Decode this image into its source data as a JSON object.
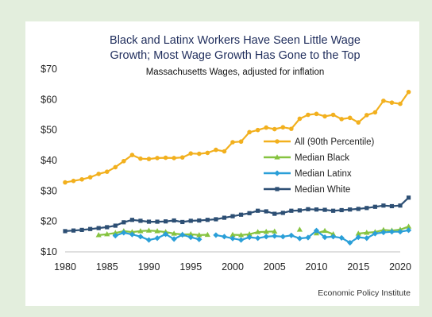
{
  "chart_data": {
    "type": "line",
    "title_line1": "Black and Latinx Workers Have Seen Little Wage",
    "title_line2": "Growth; Most Wage Growth Has Gone to the Top",
    "subtitle": "Massachusetts Wages, adjusted for inflation",
    "source": "Economic Policy Institute",
    "xlim": [
      1980,
      2020
    ],
    "ylim": [
      10,
      70
    ],
    "x_ticks": [
      "1980",
      "1985",
      "1990",
      "1995",
      "2000",
      "2005",
      "2010",
      "2015",
      "2020"
    ],
    "y_ticks": [
      "$10",
      "$20",
      "$30",
      "$40",
      "$50",
      "$60",
      "$70"
    ],
    "legend_position": "right",
    "grid": false,
    "series": [
      {
        "name": "All (90th Percentile)",
        "color": "#f2b01e",
        "marker": "circle",
        "points": [
          [
            1980,
            32.8
          ],
          [
            1981,
            33.3
          ],
          [
            1982,
            33.8
          ],
          [
            1983,
            34.5
          ],
          [
            1984,
            35.6
          ],
          [
            1985,
            36.3
          ],
          [
            1986,
            37.8
          ],
          [
            1987,
            39.8
          ],
          [
            1988,
            41.8
          ],
          [
            1989,
            40.6
          ],
          [
            1990,
            40.5
          ],
          [
            1991,
            40.8
          ],
          [
            1992,
            40.9
          ],
          [
            1993,
            40.8
          ],
          [
            1994,
            41.0
          ],
          [
            1995,
            42.3
          ],
          [
            1996,
            42.2
          ],
          [
            1997,
            42.5
          ],
          [
            1998,
            43.5
          ],
          [
            1999,
            43.0
          ],
          [
            2000,
            46.0
          ],
          [
            2001,
            46.2
          ],
          [
            2002,
            49.3
          ],
          [
            2003,
            50.0
          ],
          [
            2004,
            50.8
          ],
          [
            2005,
            50.3
          ],
          [
            2006,
            50.9
          ],
          [
            2007,
            50.4
          ],
          [
            2008,
            53.7
          ],
          [
            2009,
            55.0
          ],
          [
            2010,
            55.3
          ],
          [
            2011,
            54.5
          ],
          [
            2012,
            55.0
          ],
          [
            2013,
            53.6
          ],
          [
            2014,
            54.0
          ],
          [
            2015,
            52.5
          ],
          [
            2016,
            54.9
          ],
          [
            2017,
            55.8
          ],
          [
            2018,
            59.6
          ],
          [
            2019,
            59.0
          ],
          [
            2020,
            58.6
          ],
          [
            2021,
            62.5
          ]
        ]
      },
      {
        "name": "Median Black",
        "color": "#86c340",
        "marker": "triangle",
        "points": [
          [
            1984,
            15.5
          ],
          [
            1985,
            15.8
          ],
          [
            1986,
            16.2
          ],
          [
            1987,
            16.8
          ],
          [
            1988,
            16.5
          ],
          [
            1989,
            16.8
          ],
          [
            1990,
            17.0
          ],
          [
            1991,
            16.8
          ],
          [
            1992,
            16.5
          ],
          [
            1993,
            16.0
          ],
          [
            1994,
            15.7
          ],
          [
            1995,
            15.8
          ],
          [
            1996,
            15.5
          ],
          [
            1997,
            15.6
          ],
          [
            null,
            null
          ],
          [
            2000,
            15.6
          ],
          [
            2001,
            15.5
          ],
          [
            2002,
            15.8
          ],
          [
            2003,
            16.5
          ],
          [
            2004,
            16.6
          ],
          [
            2005,
            16.7
          ],
          [
            null,
            null
          ],
          [
            2008,
            17.3
          ],
          [
            null,
            null
          ],
          [
            2010,
            16.1
          ],
          [
            2011,
            16.9
          ],
          [
            2012,
            15.8
          ],
          [
            null,
            null
          ],
          [
            2015,
            16.0
          ],
          [
            2016,
            16.3
          ],
          [
            2017,
            16.5
          ],
          [
            2018,
            17.2
          ],
          [
            2019,
            17.0
          ],
          [
            2020,
            17.3
          ],
          [
            2021,
            18.3
          ]
        ]
      },
      {
        "name": "Median Latinx",
        "color": "#2a9fd8",
        "marker": "diamond",
        "points": [
          [
            1986,
            15.3
          ],
          [
            1987,
            16.3
          ],
          [
            1988,
            15.7
          ],
          [
            1989,
            15.0
          ],
          [
            1990,
            13.9
          ],
          [
            1991,
            14.5
          ],
          [
            1992,
            15.8
          ],
          [
            1993,
            14.2
          ],
          [
            1994,
            15.6
          ],
          [
            1995,
            14.8
          ],
          [
            1996,
            14.1
          ],
          [
            null,
            null
          ],
          [
            1998,
            15.5
          ],
          [
            1999,
            15.0
          ],
          [
            2000,
            14.4
          ],
          [
            2001,
            13.9
          ],
          [
            2002,
            14.8
          ],
          [
            2003,
            14.5
          ],
          [
            2004,
            15.0
          ],
          [
            2005,
            15.2
          ],
          [
            2006,
            15.0
          ],
          [
            2007,
            15.4
          ],
          [
            2008,
            14.4
          ],
          [
            2009,
            14.7
          ],
          [
            2010,
            17.0
          ],
          [
            2011,
            14.8
          ],
          [
            2012,
            15.0
          ],
          [
            2013,
            14.6
          ],
          [
            2014,
            13.0
          ],
          [
            2015,
            14.8
          ],
          [
            2016,
            14.5
          ],
          [
            2017,
            16.0
          ],
          [
            2018,
            16.4
          ],
          [
            2019,
            16.6
          ],
          [
            2020,
            16.6
          ],
          [
            2021,
            17.1
          ]
        ]
      },
      {
        "name": "Median White",
        "color": "#2d4f74",
        "marker": "square",
        "points": [
          [
            1980,
            16.8
          ],
          [
            1981,
            17.0
          ],
          [
            1982,
            17.2
          ],
          [
            1983,
            17.5
          ],
          [
            1984,
            17.8
          ],
          [
            1985,
            18.1
          ],
          [
            1986,
            18.6
          ],
          [
            1987,
            19.7
          ],
          [
            1988,
            20.5
          ],
          [
            1989,
            20.2
          ],
          [
            1990,
            19.9
          ],
          [
            1991,
            19.9
          ],
          [
            1992,
            20.0
          ],
          [
            1993,
            20.3
          ],
          [
            1994,
            19.8
          ],
          [
            1995,
            20.2
          ],
          [
            1996,
            20.3
          ],
          [
            1997,
            20.5
          ],
          [
            1998,
            20.7
          ],
          [
            1999,
            21.2
          ],
          [
            2000,
            21.7
          ],
          [
            2001,
            22.2
          ],
          [
            2002,
            22.7
          ],
          [
            2003,
            23.5
          ],
          [
            2004,
            23.3
          ],
          [
            2005,
            22.5
          ],
          [
            2006,
            22.8
          ],
          [
            2007,
            23.5
          ],
          [
            2008,
            23.6
          ],
          [
            2009,
            24.0
          ],
          [
            2010,
            23.9
          ],
          [
            2011,
            23.8
          ],
          [
            2012,
            23.5
          ],
          [
            2013,
            23.7
          ],
          [
            2014,
            23.9
          ],
          [
            2015,
            24.1
          ],
          [
            2016,
            24.4
          ],
          [
            2017,
            24.8
          ],
          [
            2018,
            25.2
          ],
          [
            2019,
            25.0
          ],
          [
            2020,
            25.2
          ],
          [
            2021,
            27.8
          ]
        ]
      }
    ]
  }
}
